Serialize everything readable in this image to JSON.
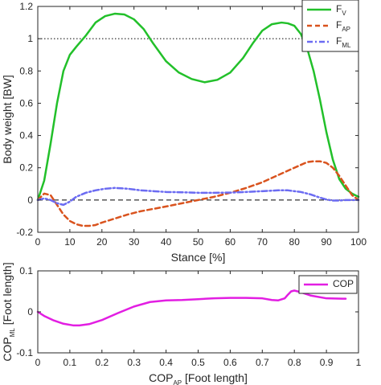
{
  "chart_data": [
    {
      "type": "line",
      "xlabel": "Stance [%]",
      "ylabel": "Body weight [BW]",
      "xlim": [
        0,
        100
      ],
      "ylim": [
        -0.2,
        1.2
      ],
      "xticks": [
        0,
        10,
        20,
        30,
        40,
        50,
        60,
        70,
        80,
        90,
        100
      ],
      "yticks": [
        -0.2,
        0,
        0.2,
        0.4,
        0.6,
        0.8,
        1,
        1.2
      ],
      "xtick_labels": [
        "0",
        "10",
        "20",
        "30",
        "40",
        "50",
        "60",
        "70",
        "80",
        "90",
        "100"
      ],
      "ytick_labels": [
        "-0.2",
        "0",
        "0.2",
        "0.4",
        "0.6",
        "0.8",
        "1",
        "1.2"
      ],
      "reference_lines": [
        {
          "y": 1,
          "style": "dotted",
          "color": "#000000"
        },
        {
          "y": 0,
          "style": "dashed",
          "color": "#000000"
        }
      ],
      "legend_position": "top-right",
      "grid": false,
      "series": [
        {
          "name": "F",
          "subscript": "V",
          "color": "#22c02a",
          "style": "solid",
          "x": [
            0,
            2,
            4,
            6,
            8,
            10,
            12,
            15,
            18,
            21,
            24,
            27,
            30,
            33,
            36,
            40,
            44,
            48,
            52,
            56,
            60,
            64,
            67,
            70,
            73,
            76,
            78,
            80,
            82,
            84,
            86,
            88,
            90,
            92,
            94,
            96,
            98,
            100
          ],
          "y": [
            0.0,
            0.12,
            0.35,
            0.6,
            0.8,
            0.9,
            0.95,
            1.02,
            1.1,
            1.14,
            1.155,
            1.15,
            1.12,
            1.06,
            0.97,
            0.86,
            0.79,
            0.75,
            0.73,
            0.745,
            0.79,
            0.88,
            0.97,
            1.05,
            1.09,
            1.1,
            1.095,
            1.08,
            1.03,
            0.94,
            0.8,
            0.62,
            0.42,
            0.25,
            0.13,
            0.07,
            0.04,
            0.02
          ]
        },
        {
          "name": "F",
          "subscript": "AP",
          "color": "#d9531e",
          "style": "dashed",
          "x": [
            0,
            2,
            4,
            6,
            8,
            10,
            12,
            14,
            16,
            18,
            20,
            24,
            28,
            32,
            36,
            40,
            45,
            50,
            55,
            60,
            65,
            70,
            75,
            80,
            84,
            86,
            88,
            90,
            92,
            94,
            96,
            98,
            100
          ],
          "y": [
            0.0,
            0.04,
            0.03,
            -0.03,
            -0.09,
            -0.13,
            -0.15,
            -0.16,
            -0.16,
            -0.155,
            -0.14,
            -0.115,
            -0.09,
            -0.07,
            -0.055,
            -0.04,
            -0.02,
            0.0,
            0.02,
            0.045,
            0.075,
            0.11,
            0.155,
            0.2,
            0.235,
            0.24,
            0.24,
            0.23,
            0.2,
            0.15,
            0.09,
            0.03,
            0.0
          ]
        },
        {
          "name": "F",
          "subscript": "ML",
          "color": "#6b6bf2",
          "style": "dashdot",
          "x": [
            0,
            2,
            4,
            6,
            8,
            10,
            12,
            15,
            18,
            21,
            24,
            28,
            32,
            36,
            40,
            45,
            50,
            55,
            60,
            65,
            70,
            75,
            78,
            82,
            85,
            88,
            90,
            92,
            94,
            96,
            98,
            100
          ],
          "y": [
            0.0,
            0.01,
            0.0,
            -0.02,
            -0.03,
            -0.01,
            0.02,
            0.045,
            0.06,
            0.07,
            0.075,
            0.07,
            0.06,
            0.055,
            0.05,
            0.048,
            0.045,
            0.045,
            0.046,
            0.05,
            0.055,
            0.06,
            0.06,
            0.05,
            0.035,
            0.015,
            0.003,
            -0.003,
            -0.003,
            0.0,
            0.0,
            0.0
          ]
        }
      ]
    },
    {
      "type": "line",
      "xlabel": "COP",
      "xlabel_sub": "AP",
      "xlabel_tail": " [Foot length]",
      "ylabel": "COP",
      "ylabel_sub": "ML",
      "ylabel_tail": " [Foot length]",
      "xlim": [
        0,
        1
      ],
      "ylim": [
        -0.1,
        0.1
      ],
      "xticks": [
        0,
        0.1,
        0.2,
        0.3,
        0.4,
        0.5,
        0.6,
        0.7,
        0.8,
        0.9,
        1
      ],
      "yticks": [
        -0.1,
        0,
        0.1
      ],
      "xtick_labels": [
        "0",
        "0.1",
        "0.2",
        "0.3",
        "0.4",
        "0.5",
        "0.6",
        "0.7",
        "0.8",
        "0.9",
        "1"
      ],
      "ytick_labels": [
        "-0.1",
        "0",
        "0.1"
      ],
      "legend_position": "top-right",
      "grid": false,
      "series": [
        {
          "name": "COP",
          "color": "#e21ee2",
          "style": "solid",
          "x": [
            0,
            0.02,
            0.05,
            0.08,
            0.11,
            0.13,
            0.16,
            0.2,
            0.25,
            0.3,
            0.35,
            0.4,
            0.45,
            0.5,
            0.55,
            0.6,
            0.65,
            0.7,
            0.73,
            0.75,
            0.77,
            0.78,
            0.79,
            0.8,
            0.82,
            0.85,
            0.9,
            0.95,
            0.96
          ],
          "y": [
            0.0,
            -0.01,
            -0.021,
            -0.029,
            -0.033,
            -0.033,
            -0.03,
            -0.02,
            -0.003,
            0.013,
            0.024,
            0.028,
            0.029,
            0.031,
            0.033,
            0.034,
            0.034,
            0.033,
            0.029,
            0.028,
            0.033,
            0.042,
            0.05,
            0.052,
            0.048,
            0.04,
            0.033,
            0.032,
            0.032
          ]
        }
      ]
    }
  ]
}
